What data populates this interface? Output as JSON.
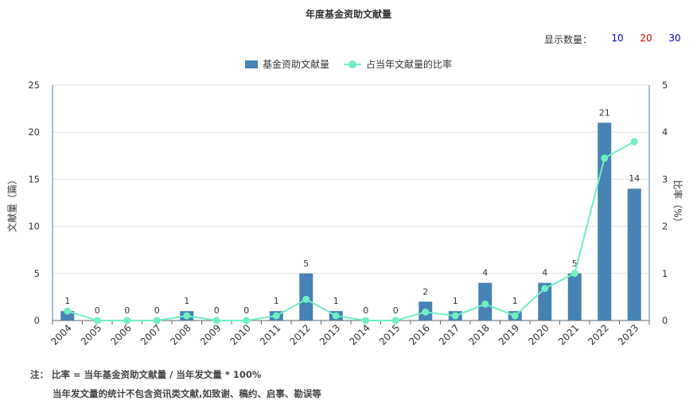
{
  "chart_data": {
    "type": "bar",
    "title": "年度基金资助文献量",
    "categories": [
      "2004",
      "2005",
      "2006",
      "2007",
      "2008",
      "2009",
      "2010",
      "2011",
      "2012",
      "2013",
      "2014",
      "2015",
      "2016",
      "2017",
      "2018",
      "2019",
      "2020",
      "2021",
      "2022",
      "2023"
    ],
    "series": [
      {
        "name": "基金资助文献量",
        "type": "bar",
        "axis": "left",
        "color": "#4682b4",
        "values": [
          1,
          0,
          0,
          0,
          1,
          0,
          0,
          1,
          5,
          1,
          0,
          0,
          2,
          1,
          4,
          1,
          4,
          5,
          21,
          14
        ]
      },
      {
        "name": "占当年文献量的比率",
        "type": "line",
        "axis": "right",
        "color": "#6ff0c0",
        "values": [
          0.2,
          0.0,
          0.0,
          0.0,
          0.1,
          0.0,
          0.0,
          0.1,
          0.45,
          0.1,
          0.0,
          0.0,
          0.18,
          0.1,
          0.35,
          0.1,
          0.68,
          1.0,
          3.45,
          3.8
        ]
      }
    ],
    "ylabel": "文献量（篇）",
    "y2label": "比率（%）",
    "ylim": [
      0,
      25
    ],
    "y2lim": [
      0,
      5
    ],
    "yticks": [
      "0",
      "5",
      "10",
      "15",
      "20",
      "25"
    ],
    "y2ticks": [
      "0",
      "1",
      "2",
      "3",
      "4",
      "5"
    ],
    "grid": true,
    "legend": "top-center"
  },
  "controls": {
    "count_label": "显示数量：",
    "options": [
      {
        "label": "10",
        "color": "#0000cc"
      },
      {
        "label": "20",
        "color": "#cc0000"
      },
      {
        "label": "30",
        "color": "#0000cc"
      }
    ]
  },
  "notes": {
    "line1": "注： 比率 = 当年基金资助文献量 / 当年发文量 * 100%",
    "line2": "当年发文量的统计不包含资讯类文献,如致谢、稿约、启事、勘误等"
  }
}
